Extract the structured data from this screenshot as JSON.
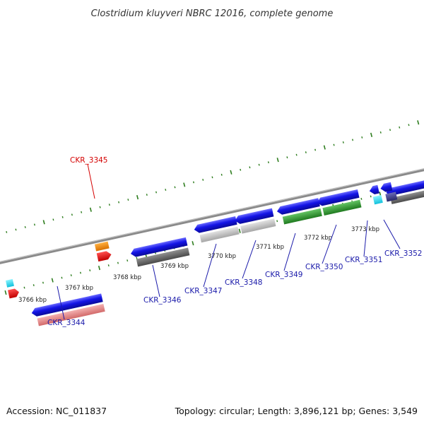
{
  "title": "Clostridium kluyveri NBRC 12016, complete genome",
  "footer": {
    "accession": "Accession: NC_011837",
    "summary": "Topology: circular; Length: 3,896,121 bp; Genes: 3,549"
  },
  "scale_labels": [
    "3766 kbp",
    "3767 kbp",
    "3768 kbp",
    "3769 kbp",
    "3770 kbp",
    "3771 kbp",
    "3772 kbp",
    "3773 kbp"
  ],
  "gene_labels": [
    {
      "id": "CKR_3344",
      "highlight": false
    },
    {
      "id": "CKR_3345",
      "highlight": true
    },
    {
      "id": "CKR_3346",
      "highlight": false
    },
    {
      "id": "CKR_3347",
      "highlight": false
    },
    {
      "id": "CKR_3348",
      "highlight": false
    },
    {
      "id": "CKR_3349",
      "highlight": false
    },
    {
      "id": "CKR_3350",
      "highlight": false
    },
    {
      "id": "CKR_3351",
      "highlight": false
    },
    {
      "id": "CKR_3352",
      "highlight": false
    }
  ],
  "colors": {
    "backbone": "#8a8a8a",
    "tick": "#2e7d1e",
    "cds": "#1414e6",
    "highlight_label": "#d40000",
    "label": "#1a1aaa",
    "cog_pink": "#e88080",
    "cog_darkgray": "#5f5f5f",
    "cog_lightgray": "#bcbcbc",
    "cog_green": "#2f9a2f",
    "cog_cyan": "#22d8f0",
    "cog_orange": "#f08a00",
    "cog_red": "#e41010",
    "cog_navy": "#3a3a8a"
  }
}
